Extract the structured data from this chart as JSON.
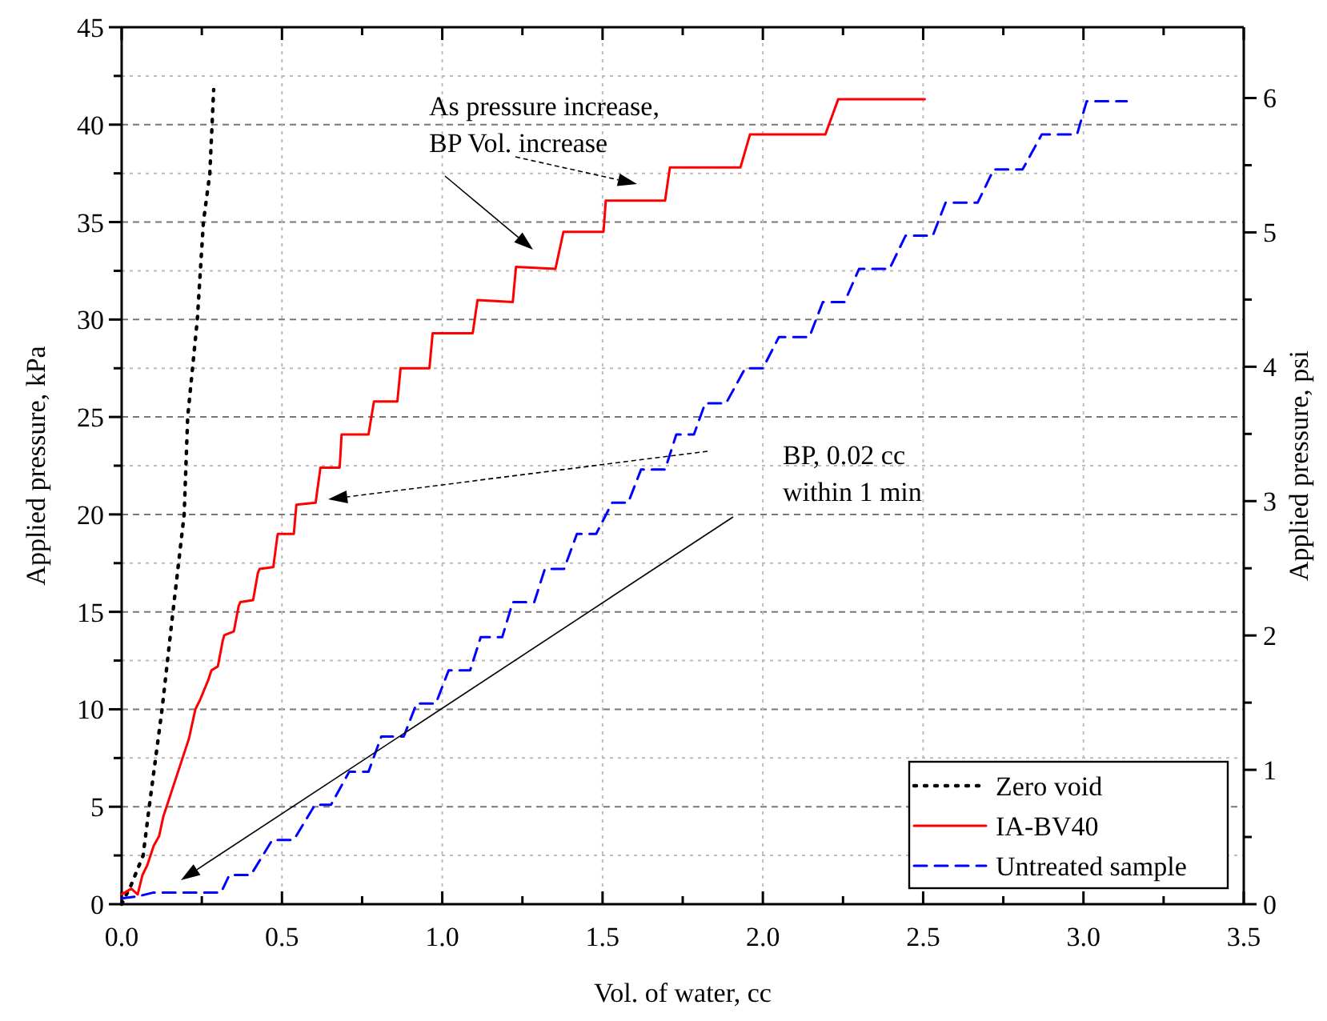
{
  "chart_data": {
    "type": "line",
    "xlabel": "Vol. of water, cc",
    "ylabel": "Applied pressure, kPa",
    "y2label": "Applied pressure, psi",
    "xlim": [
      0,
      3.5
    ],
    "ylim": [
      0,
      45
    ],
    "y2lim": [
      0,
      6.527
    ],
    "xticks": [
      {
        "value": 0,
        "label": "0.0"
      },
      {
        "value": 0.25,
        "label": null
      },
      {
        "value": 0.5,
        "label": "0.5"
      },
      {
        "value": 0.75,
        "label": null
      },
      {
        "value": 1,
        "label": "1.0"
      },
      {
        "value": 1.25,
        "label": null
      },
      {
        "value": 1.5,
        "label": "1.5"
      },
      {
        "value": 1.75,
        "label": null
      },
      {
        "value": 2,
        "label": "2.0"
      },
      {
        "value": 2.25,
        "label": null
      },
      {
        "value": 2.5,
        "label": "2.5"
      },
      {
        "value": 2.75,
        "label": null
      },
      {
        "value": 3,
        "label": "3.0"
      },
      {
        "value": 3.25,
        "label": null
      },
      {
        "value": 3.5,
        "label": "3.5"
      }
    ],
    "yticks": [
      0,
      {
        "value": 2.5,
        "label": null
      },
      5,
      {
        "value": 7.5,
        "label": null
      },
      10,
      {
        "value": 12.5,
        "label": null
      },
      15,
      {
        "value": 17.5,
        "label": null
      },
      20,
      {
        "value": 22.5,
        "label": null
      },
      25,
      {
        "value": 27.5,
        "label": null
      },
      30,
      {
        "value": 32.5,
        "label": null
      },
      35,
      {
        "value": 37.5,
        "label": null
      },
      40,
      {
        "value": 42.5,
        "label": null
      },
      45
    ],
    "y2ticks": [
      0,
      {
        "value": 0.5,
        "label": null
      },
      1,
      {
        "value": 1.5,
        "label": null
      },
      2,
      {
        "value": 2.5,
        "label": null
      },
      3,
      {
        "value": 3.5,
        "label": null
      },
      4,
      {
        "value": 4.5,
        "label": null
      },
      5,
      {
        "value": 5.5,
        "label": null
      },
      6
    ],
    "grid": true,
    "legend": "bottom right",
    "marker": "none",
    "series": [
      {
        "name": "Zero void",
        "color": "#000000",
        "line_style": "dotted",
        "x": [
          0,
          0.03,
          0.067,
          0.086,
          0.126,
          0.16,
          0.195,
          0.206,
          0.236,
          0.255,
          0.275,
          0.287
        ],
        "values": [
          0,
          1,
          2.5,
          5,
          10,
          15,
          20,
          25,
          30,
          35,
          37.5,
          41.8
        ]
      },
      {
        "name": "IA-BV40",
        "color": "#ff0000",
        "line_style": "solid",
        "x": [
          0,
          0.03,
          0.05,
          0.065,
          0.08,
          0.1,
          0.117,
          0.13,
          0.14,
          0.16,
          0.18,
          0.2,
          0.21,
          0.23,
          0.245,
          0.27,
          0.28,
          0.3,
          0.315,
          0.32,
          0.35,
          0.365,
          0.37,
          0.41,
          0.425,
          0.43,
          0.473,
          0.485,
          0.487,
          0.537,
          0.545,
          0.605,
          0.62,
          0.68,
          0.686,
          0.77,
          0.787,
          0.86,
          0.87,
          0.96,
          0.97,
          1.095,
          1.11,
          1.22,
          1.23,
          1.353,
          1.378,
          1.503,
          1.51,
          1.695,
          1.71,
          1.93,
          1.96,
          2.195,
          2.235,
          2.505
        ],
        "values": [
          0.5,
          0.8,
          0.5,
          1.5,
          2,
          3,
          3.5,
          4.5,
          5,
          6,
          7,
          8,
          8.5,
          10,
          10.5,
          11.5,
          12,
          12.2,
          13.5,
          13.8,
          14,
          15.3,
          15.5,
          15.6,
          17,
          17.2,
          17.3,
          18.8,
          19,
          19,
          20.5,
          20.6,
          22.4,
          22.4,
          24.1,
          24.1,
          25.8,
          25.8,
          27.5,
          27.5,
          29.3,
          29.3,
          31,
          30.9,
          32.7,
          32.6,
          34.5,
          34.5,
          36.1,
          36.1,
          37.8,
          37.8,
          39.5,
          39.5,
          41.3,
          41.3
        ]
      },
      {
        "name": "Untreated sample",
        "color": "#0000ff",
        "line_style": "dashed",
        "x": [
          0,
          0.05,
          0.1,
          0.31,
          0.336,
          0.403,
          0.47,
          0.537,
          0.603,
          0.653,
          0.71,
          0.77,
          0.81,
          0.88,
          0.92,
          0.98,
          1.02,
          1.087,
          1.12,
          1.187,
          1.22,
          1.287,
          1.32,
          1.38,
          1.42,
          1.48,
          1.53,
          1.58,
          1.62,
          1.695,
          1.73,
          1.785,
          1.82,
          1.885,
          1.945,
          2,
          2.05,
          2.145,
          2.187,
          2.255,
          2.3,
          2.395,
          2.445,
          2.53,
          2.57,
          2.67,
          2.72,
          2.81,
          2.87,
          2.98,
          3.01,
          3.135
        ],
        "values": [
          0.3,
          0.4,
          0.6,
          0.6,
          1.5,
          1.5,
          3.3,
          3.3,
          5.1,
          5.1,
          6.8,
          6.8,
          8.6,
          8.6,
          10.3,
          10.3,
          12,
          12,
          13.7,
          13.7,
          15.5,
          15.5,
          17.2,
          17.2,
          19,
          19,
          20.6,
          20.6,
          22.3,
          22.3,
          24.1,
          24.1,
          25.7,
          25.7,
          27.5,
          27.5,
          29.1,
          29.1,
          30.9,
          30.9,
          32.6,
          32.6,
          34.3,
          34.3,
          36,
          36,
          37.7,
          37.7,
          39.5,
          39.5,
          41.2,
          41.2
        ]
      }
    ],
    "annotations": [
      "As pressure increase,\nBP Vol. increase",
      "BP, 0.02 cc\nwithin 1 min"
    ]
  }
}
